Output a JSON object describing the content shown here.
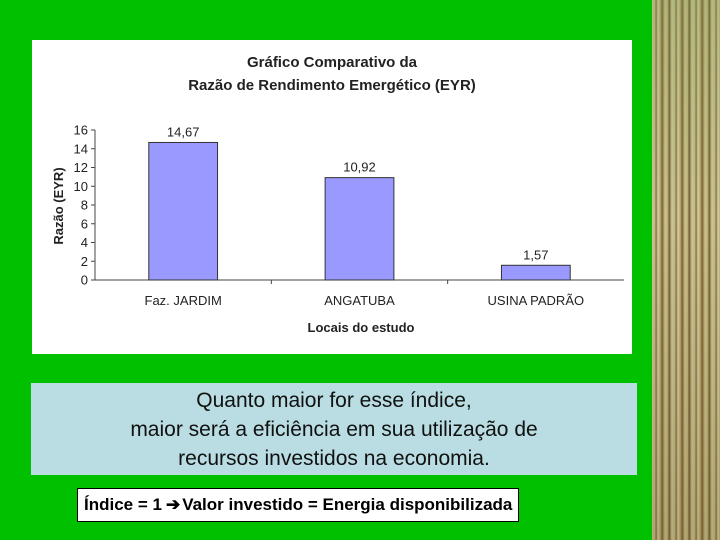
{
  "chart_data": {
    "type": "bar",
    "title_lines": [
      "Gráfico Comparativo da",
      "Razão de Rendimento Emergético (EYR)"
    ],
    "xlabel": "Locais do estudo",
    "ylabel": "Razão (EYR)",
    "categories": [
      "Faz. JARDIM",
      "ANGATUBA",
      "USINA PADRÃO"
    ],
    "values": [
      14.67,
      10.92,
      1.57
    ],
    "value_labels": [
      "14,67",
      "10,92",
      "1,57"
    ],
    "ylim": [
      0,
      16
    ],
    "yticks": [
      "0",
      "2",
      "4",
      "6",
      "8",
      "10",
      "12",
      "14",
      "16"
    ],
    "bar_color": "#9999ff",
    "grid": false,
    "legend": "none"
  },
  "caption": {
    "lines": [
      "Quanto maior for esse índice,",
      "maior será a eficiência em sua utilização de",
      "recursos investidos na economia."
    ]
  },
  "formula": {
    "left": "Índice = 1",
    "arrow_icon": "right-arrow-icon",
    "right": "Valor investido = Energia disponibilizada"
  },
  "colors": {
    "background": "#00c000",
    "caption_bg": "#b9dde2"
  }
}
